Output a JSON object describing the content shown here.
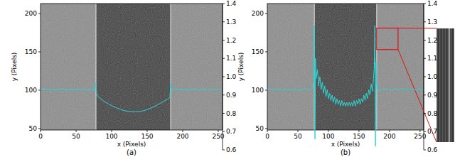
{
  "chart_data": [
    {
      "type": "line",
      "panel_label": "(a)",
      "x_label": "x (Pixels)",
      "y_label": "y (Pixels)",
      "xlim": [
        0,
        256
      ],
      "xticks": [
        0,
        50,
        100,
        150,
        200,
        250
      ],
      "ylim": [
        48,
        213
      ],
      "yticks": [
        50,
        100,
        150,
        200
      ],
      "y2lim": [
        0.6,
        1.4
      ],
      "y2ticks": [
        0.6,
        0.7,
        0.8,
        0.9,
        {
          "value": 1,
          "label": "1.0"
        },
        1.1,
        1.2,
        1.3,
        1.4
      ],
      "band_x": [
        78,
        183
      ],
      "series": [
        {
          "color": "#2fd3d3",
          "axis": "y2",
          "x": [
            0,
            4,
            8,
            12,
            16,
            20,
            24,
            28,
            32,
            36,
            40,
            44,
            48,
            52,
            56,
            60,
            64,
            68,
            72,
            76,
            77,
            78,
            79,
            80,
            85,
            90,
            95,
            100,
            105,
            110,
            115,
            120,
            125,
            130,
            135,
            140,
            145,
            150,
            155,
            160,
            165,
            170,
            175,
            180,
            182,
            183,
            184,
            188,
            192,
            196,
            200,
            204,
            208,
            212,
            216,
            220,
            224,
            228,
            232,
            236,
            240,
            244,
            248,
            252,
            255
          ],
          "values": [
            0.93,
            0.932,
            0.929,
            0.931,
            0.93,
            0.928,
            0.931,
            0.93,
            0.932,
            0.929,
            0.93,
            0.931,
            0.929,
            0.93,
            0.932,
            0.93,
            0.929,
            0.931,
            0.93,
            0.93,
            0.965,
            0.94,
            0.905,
            0.895,
            0.878,
            0.864,
            0.852,
            0.842,
            0.833,
            0.825,
            0.818,
            0.813,
            0.81,
            0.808,
            0.808,
            0.81,
            0.814,
            0.82,
            0.828,
            0.837,
            0.847,
            0.858,
            0.869,
            0.88,
            0.888,
            0.962,
            0.932,
            0.93,
            0.929,
            0.931,
            0.93,
            0.932,
            0.929,
            0.93,
            0.931,
            0.93,
            0.928,
            0.931,
            0.93,
            0.929,
            0.932,
            0.93,
            0.931,
            0.929,
            0.93
          ]
        }
      ]
    },
    {
      "type": "line",
      "panel_label": "(b)",
      "x_label": "x (Pixels)",
      "y_label": "y (Pixels)",
      "xlim": [
        0,
        256
      ],
      "xticks": [
        0,
        50,
        100,
        150,
        200,
        250
      ],
      "ylim": [
        48,
        213
      ],
      "yticks": [
        50,
        100,
        150,
        200
      ],
      "y2lim": [
        0.6,
        1.4
      ],
      "y2ticks": [
        0.6,
        0.7,
        0.8,
        0.9,
        {
          "value": 1,
          "label": "1.0"
        },
        1.1,
        1.2,
        1.3,
        1.4
      ],
      "band_x": [
        77,
        179
      ],
      "zoom_box": {
        "x": [
          179,
          214
        ],
        "y": [
          153,
          181
        ]
      },
      "series": [
        {
          "color": "#2fd3d3",
          "axis": "y2",
          "x": [
            0,
            4,
            8,
            12,
            16,
            20,
            24,
            28,
            32,
            36,
            40,
            44,
            48,
            52,
            56,
            60,
            64,
            68,
            72,
            74,
            76,
            77,
            78,
            79,
            80,
            82,
            84,
            86,
            88,
            90,
            92,
            94,
            96,
            98,
            100,
            102,
            104,
            106,
            108,
            110,
            112,
            114,
            116,
            118,
            120,
            122,
            124,
            126,
            128,
            130,
            132,
            134,
            136,
            138,
            140,
            142,
            144,
            146,
            148,
            150,
            152,
            154,
            156,
            158,
            160,
            162,
            164,
            166,
            168,
            170,
            172,
            174,
            175,
            176,
            177,
            178,
            179,
            180,
            184,
            188,
            192,
            196,
            200,
            204,
            208,
            212,
            216,
            220,
            224,
            228,
            232,
            236,
            240,
            244,
            248,
            252,
            255
          ],
          "values": [
            0.93,
            0.935,
            0.926,
            0.933,
            0.928,
            0.936,
            0.925,
            0.932,
            0.929,
            0.934,
            0.927,
            0.935,
            0.93,
            0.926,
            0.934,
            0.929,
            0.936,
            0.927,
            0.932,
            0.94,
            0.97,
            1.28,
            0.66,
            1.1,
            0.99,
            1.04,
            0.95,
            1.0,
            0.93,
            0.97,
            0.91,
            0.95,
            0.89,
            0.93,
            0.88,
            0.91,
            0.87,
            0.9,
            0.86,
            0.89,
            0.85,
            0.88,
            0.85,
            0.87,
            0.84,
            0.87,
            0.84,
            0.86,
            0.84,
            0.86,
            0.84,
            0.86,
            0.84,
            0.86,
            0.84,
            0.87,
            0.84,
            0.87,
            0.85,
            0.88,
            0.85,
            0.88,
            0.86,
            0.9,
            0.87,
            0.91,
            0.88,
            0.93,
            0.9,
            0.96,
            0.92,
            1.0,
            1.05,
            1.28,
            0.62,
            1.08,
            0.95,
            0.93,
            0.931,
            0.927,
            0.935,
            0.929,
            0.933,
            0.926,
            0.934,
            0.93,
            0.928,
            0.936,
            0.929,
            0.932,
            0.927,
            0.934,
            0.93,
            0.926,
            0.933,
            0.929,
            0.93
          ]
        }
      ]
    }
  ]
}
